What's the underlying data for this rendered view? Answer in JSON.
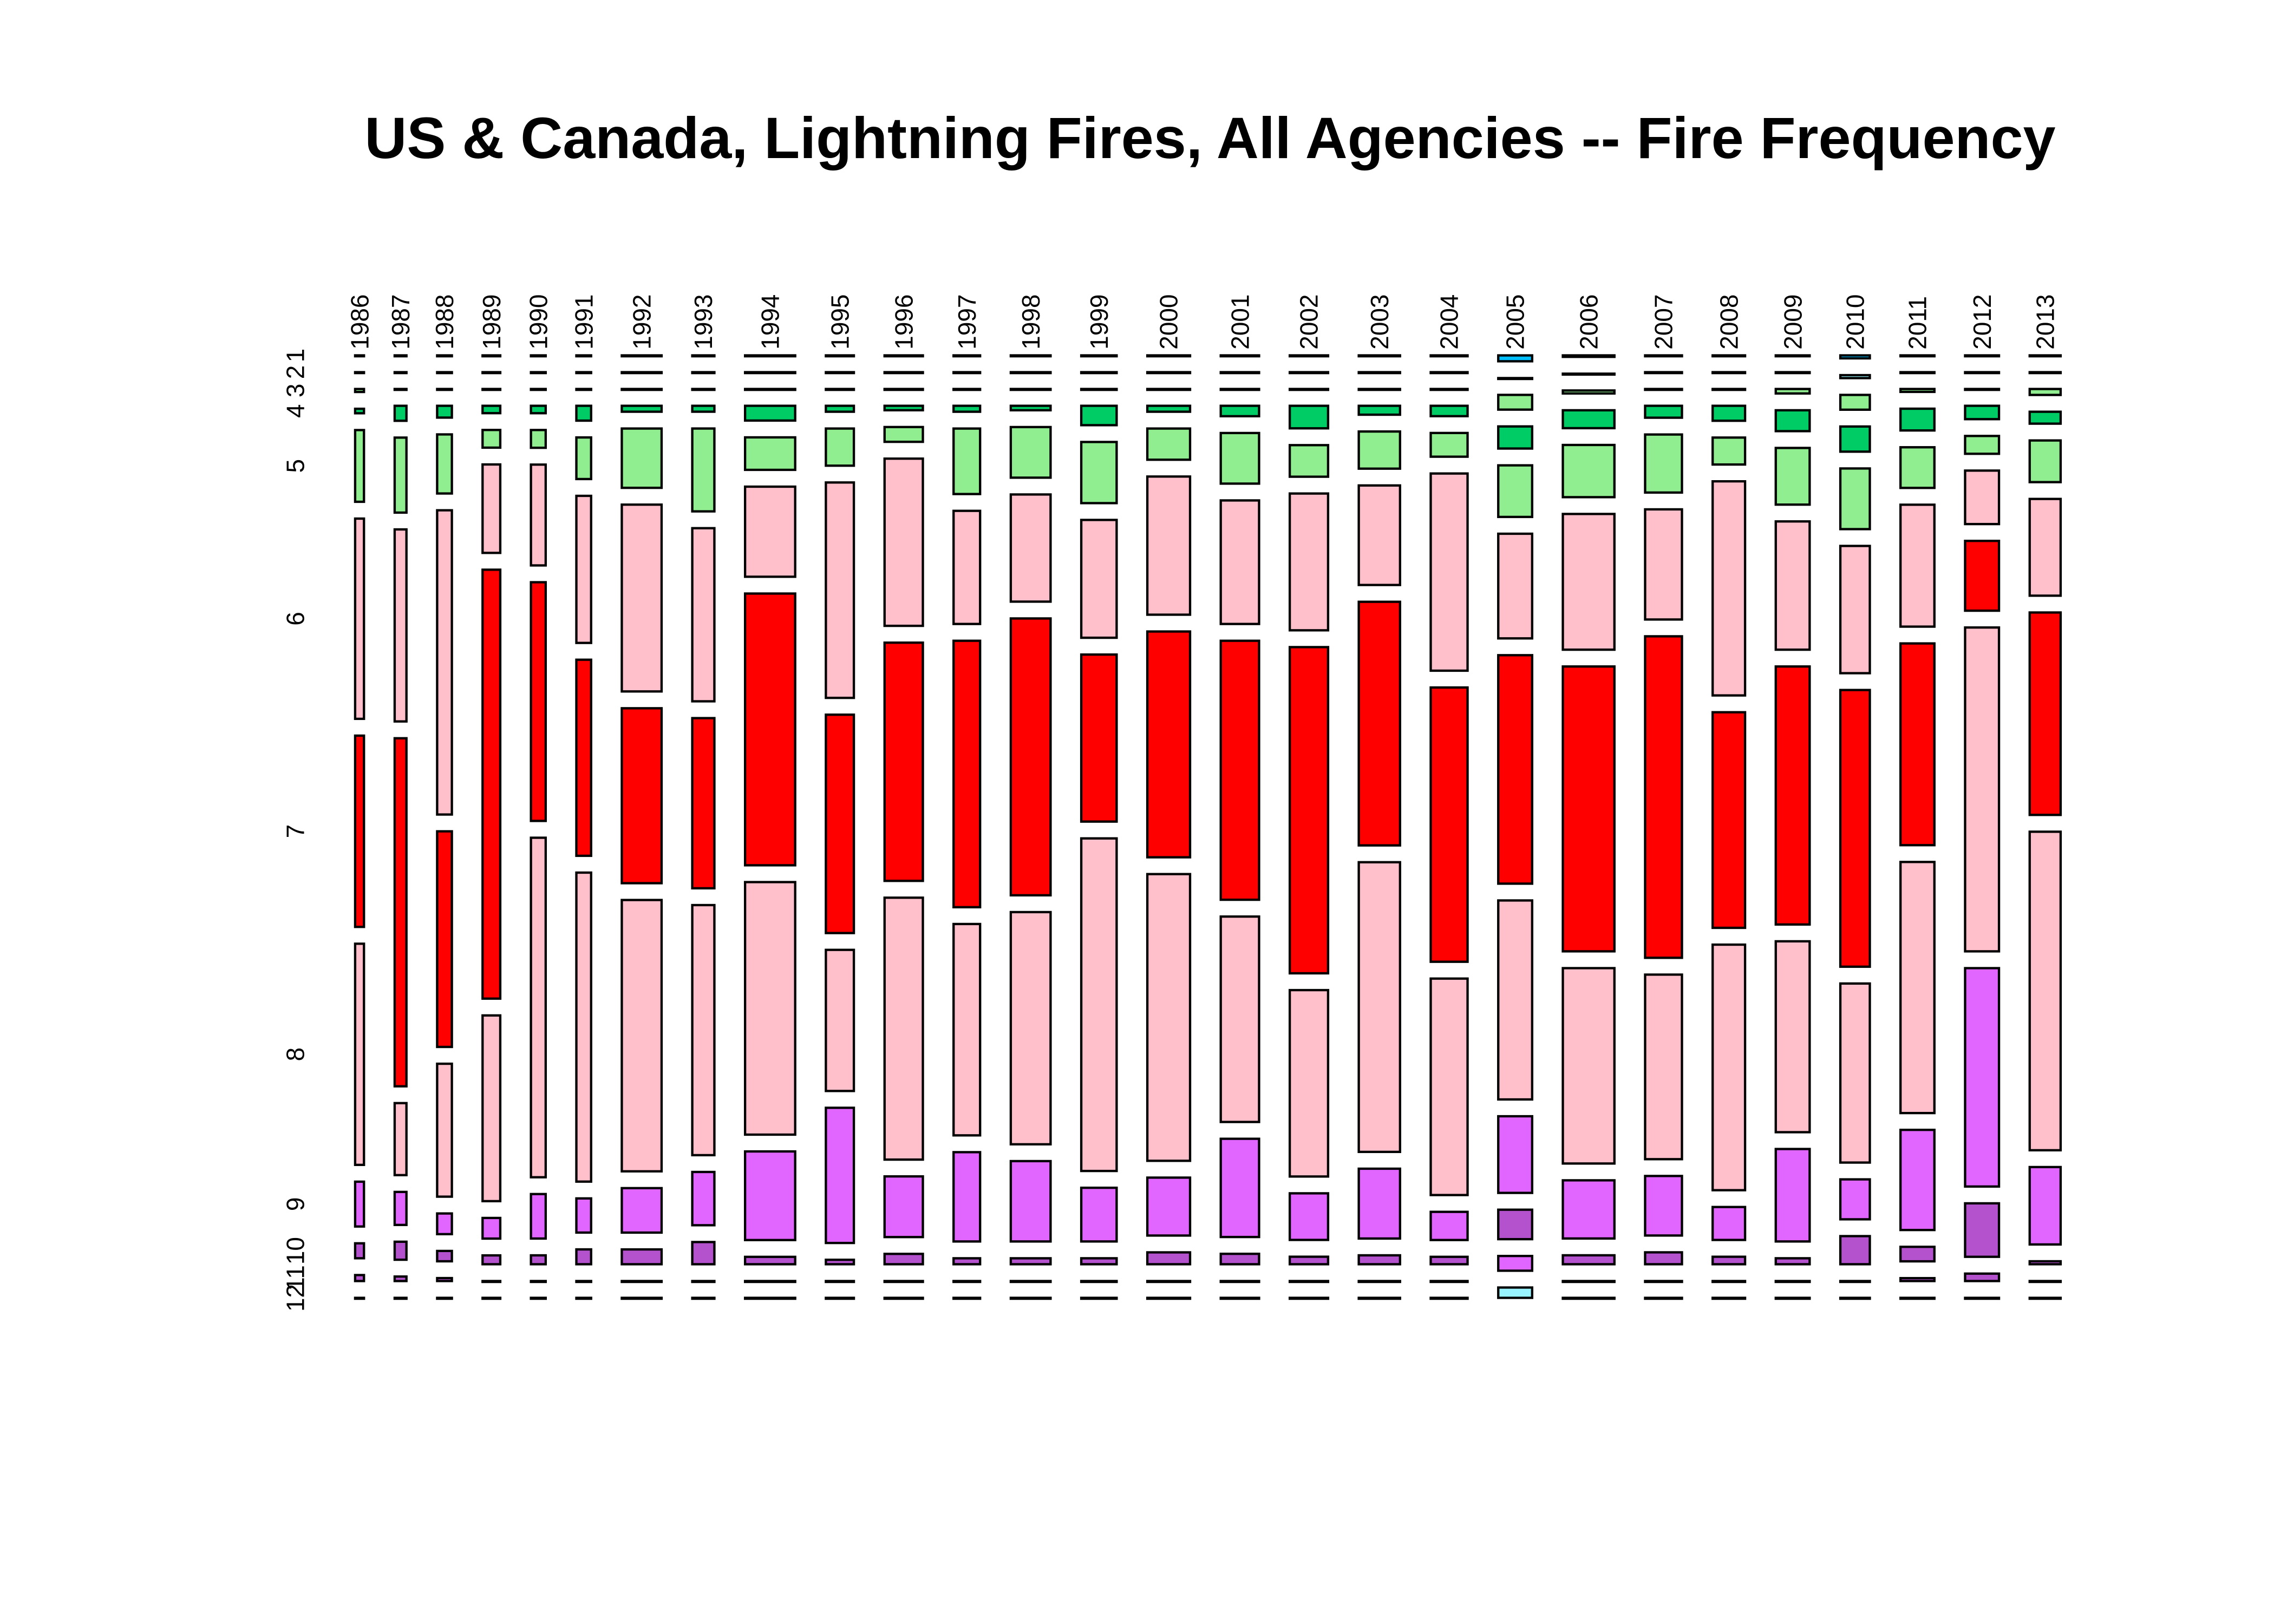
{
  "chart_data": {
    "type": "mosaic",
    "title": "US & Canada, Lightning Fires, All Agencies -- Fire Frequency",
    "xlabel": "",
    "ylabel": "",
    "years": [
      "1986",
      "1987",
      "1988",
      "1989",
      "1990",
      "1991",
      "1992",
      "1993",
      "1994",
      "1995",
      "1996",
      "1997",
      "1998",
      "1999",
      "2000",
      "2001",
      "2002",
      "2003",
      "2004",
      "2005",
      "2006",
      "2007",
      "2008",
      "2009",
      "2010",
      "2011",
      "2012",
      "2013"
    ],
    "months": [
      "1",
      "2",
      "3",
      "4",
      "5",
      "6",
      "7",
      "8",
      "9",
      "10",
      "11",
      "12"
    ],
    "year_relative_totals": [
      6,
      8,
      10,
      12,
      10,
      10,
      27,
      15,
      34,
      19,
      26,
      18,
      27,
      24,
      29,
      26,
      26,
      28,
      25,
      23,
      35,
      25,
      22,
      23,
      20,
      23,
      23,
      21
    ],
    "month_relative_frequencies": [
      [
        0,
        0,
        2,
        3,
        48,
        134,
        128,
        148,
        30,
        10,
        4,
        0
      ],
      [
        0,
        0,
        0,
        10,
        50,
        128,
        232,
        48,
        22,
        12,
        3,
        0
      ],
      [
        0,
        0,
        0,
        8,
        40,
        206,
        146,
        90,
        14,
        7,
        2,
        0
      ],
      [
        0,
        0,
        0,
        5,
        12,
        60,
        291,
        126,
        14,
        6,
        0,
        0
      ],
      [
        0,
        0,
        0,
        5,
        12,
        68,
        161,
        229,
        30,
        6,
        0,
        0
      ],
      [
        0,
        0,
        0,
        10,
        28,
        99,
        132,
        208,
        23,
        10,
        0,
        0
      ],
      [
        0,
        0,
        0,
        4,
        40,
        126,
        118,
        183,
        30,
        10,
        0,
        0
      ],
      [
        0,
        0,
        0,
        4,
        56,
        117,
        115,
        169,
        36,
        15,
        0,
        0
      ],
      [
        0,
        0,
        0,
        10,
        22,
        61,
        184,
        171,
        60,
        5,
        0,
        0
      ],
      [
        0,
        0,
        0,
        4,
        25,
        145,
        147,
        95,
        91,
        3,
        0,
        0
      ],
      [
        0,
        0,
        0,
        3,
        10,
        113,
        161,
        177,
        41,
        7,
        0,
        0
      ],
      [
        0,
        0,
        0,
        4,
        44,
        76,
        179,
        142,
        60,
        4,
        0,
        0
      ],
      [
        0,
        0,
        0,
        3,
        34,
        72,
        186,
        156,
        54,
        4,
        0,
        0
      ],
      [
        0,
        0,
        0,
        13,
        41,
        79,
        112,
        223,
        36,
        4,
        0,
        0
      ],
      [
        0,
        0,
        0,
        4,
        21,
        93,
        152,
        193,
        39,
        8,
        0,
        0
      ],
      [
        0,
        0,
        0,
        7,
        34,
        83,
        174,
        138,
        66,
        7,
        0,
        0
      ],
      [
        0,
        0,
        0,
        15,
        21,
        91,
        217,
        124,
        31,
        5,
        0,
        0
      ],
      [
        0,
        0,
        0,
        6,
        25,
        67,
        164,
        195,
        47,
        6,
        0,
        0
      ],
      [
        0,
        0,
        0,
        7,
        16,
        133,
        185,
        146,
        19,
        5,
        0,
        0
      ],
      [
        4,
        0,
        10,
        15,
        35,
        71,
        155,
        135,
        52,
        20,
        10,
        7
      ],
      [
        1,
        0,
        2,
        12,
        35,
        91,
        191,
        131,
        39,
        6,
        0,
        0
      ],
      [
        0,
        0,
        0,
        8,
        39,
        74,
        216,
        124,
        40,
        8,
        0,
        0
      ],
      [
        0,
        0,
        0,
        10,
        18,
        143,
        144,
        164,
        22,
        5,
        0,
        0
      ],
      [
        0,
        0,
        3,
        14,
        38,
        86,
        173,
        128,
        62,
        4,
        0,
        0
      ],
      [
        2,
        2,
        10,
        17,
        41,
        86,
        187,
        121,
        27,
        19,
        0,
        0
      ],
      [
        0,
        0,
        2,
        15,
        28,
        84,
        139,
        173,
        69,
        10,
        2,
        0
      ],
      [
        0,
        0,
        0,
        9,
        12,
        36,
        47,
        218,
        147,
        36,
        5,
        0
      ],
      [
        0,
        0,
        4,
        8,
        28,
        65,
        136,
        214,
        52,
        2,
        0,
        0
      ]
    ],
    "month_colors": [
      "#ffffff",
      "#ffffff",
      "#90ee90",
      "#00cc66",
      "#90ee90",
      "#ffc0cb",
      "#ff0000",
      "#ffc0cb",
      "#e066ff",
      "#b452cd",
      "#b452cd",
      "#ffffff"
    ],
    "color_overrides": [
      {
        "year": "2005",
        "month": "1",
        "color": "#00bfff"
      },
      {
        "year": "2005",
        "month": "11",
        "color": "#e066ff"
      },
      {
        "year": "2005",
        "month": "12",
        "color": "#98f5ff"
      },
      {
        "year": "2006",
        "month": "1",
        "color": "#00bfff"
      },
      {
        "year": "2010",
        "month": "1",
        "color": "#00bfff"
      },
      {
        "year": "2010",
        "month": "2",
        "color": "#98f5ff"
      }
    ]
  }
}
